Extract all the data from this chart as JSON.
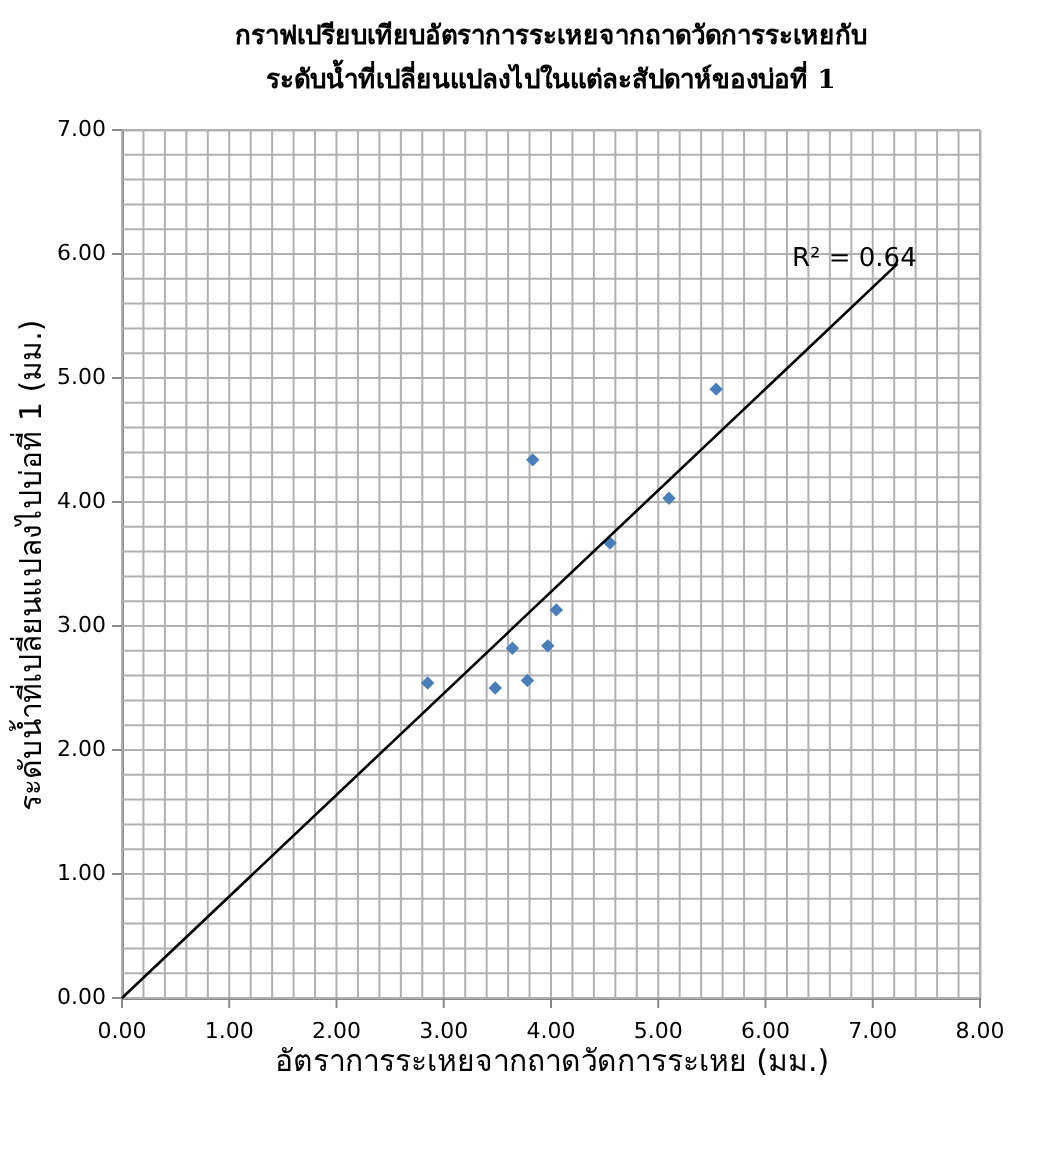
{
  "chart_data": {
    "type": "scatter",
    "title": [
      "กราฟเปรียบเทียบอัตราการระเหยจากถาดวัดการระเหยกับ",
      "ระดับน้ำที่เปลี่ยนแปลงไปในแต่ละสัปดาห์ของบ่อที่ 1"
    ],
    "xlabel": "อัตราการระเหยจากถาดวัดการระเหย (มม.)",
    "ylabel": "ระดับน้ำที่เปลี่ยนแปลงไปบ่อที่ 1 (มม.)",
    "annotations": [
      "R² = 0.64"
    ],
    "series": [
      {
        "color": "#4a7ebb",
        "marker": "diamond",
        "x": [
          5.54,
          3.83,
          5.1,
          4.55,
          4.05,
          3.64,
          3.97,
          3.48,
          3.78,
          2.85
        ],
        "values": [
          4.91,
          4.34,
          4.03,
          3.67,
          3.13,
          2.82,
          2.84,
          2.5,
          2.56,
          2.54
        ]
      },
      {
        "type": "line",
        "color": "#000000",
        "marker": "none",
        "x": [
          0,
          7.23
        ],
        "values": [
          0,
          5.92
        ]
      }
    ],
    "xlim": [
      0,
      8
    ],
    "ylim": [
      0,
      7
    ],
    "xticks": [
      {
        "value": 0,
        "label": "0.00"
      },
      {
        "value": 0.2,
        "label": null
      },
      {
        "value": 0.4,
        "label": null
      },
      {
        "value": 0.6,
        "label": null
      },
      {
        "value": 0.8,
        "label": null
      },
      {
        "value": 1,
        "label": "1.00"
      },
      {
        "value": 1.2,
        "label": null
      },
      {
        "value": 1.4,
        "label": null
      },
      {
        "value": 1.6,
        "label": null
      },
      {
        "value": 1.8,
        "label": null
      },
      {
        "value": 2,
        "label": "2.00"
      },
      {
        "value": 2.2,
        "label": null
      },
      {
        "value": 2.4,
        "label": null
      },
      {
        "value": 2.6,
        "label": null
      },
      {
        "value": 2.8,
        "label": null
      },
      {
        "value": 3,
        "label": "3.00"
      },
      {
        "value": 3.2,
        "label": null
      },
      {
        "value": 3.4,
        "label": null
      },
      {
        "value": 3.6,
        "label": null
      },
      {
        "value": 3.8,
        "label": null
      },
      {
        "value": 4,
        "label": "4.00"
      },
      {
        "value": 4.2,
        "label": null
      },
      {
        "value": 4.4,
        "label": null
      },
      {
        "value": 4.6,
        "label": null
      },
      {
        "value": 4.8,
        "label": null
      },
      {
        "value": 5,
        "label": "5.00"
      },
      {
        "value": 5.2,
        "label": null
      },
      {
        "value": 5.4,
        "label": null
      },
      {
        "value": 5.6,
        "label": null
      },
      {
        "value": 5.8,
        "label": null
      },
      {
        "value": 6,
        "label": "6.00"
      },
      {
        "value": 6.2,
        "label": null
      },
      {
        "value": 6.4,
        "label": null
      },
      {
        "value": 6.6,
        "label": null
      },
      {
        "value": 6.8,
        "label": null
      },
      {
        "value": 7,
        "label": "7.00"
      },
      {
        "value": 7.2,
        "label": null
      },
      {
        "value": 7.4,
        "label": null
      },
      {
        "value": 7.6,
        "label": null
      },
      {
        "value": 7.8,
        "label": null
      },
      {
        "value": 8,
        "label": "8.00"
      }
    ],
    "yticks": [
      {
        "value": 0,
        "label": "0.00"
      },
      {
        "value": 0.2,
        "label": null
      },
      {
        "value": 0.4,
        "label": null
      },
      {
        "value": 0.6,
        "label": null
      },
      {
        "value": 0.8,
        "label": null
      },
      {
        "value": 1,
        "label": "1.00"
      },
      {
        "value": 1.2,
        "label": null
      },
      {
        "value": 1.4,
        "label": null
      },
      {
        "value": 1.6,
        "label": null
      },
      {
        "value": 1.8,
        "label": null
      },
      {
        "value": 2,
        "label": "2.00"
      },
      {
        "value": 2.2,
        "label": null
      },
      {
        "value": 2.4,
        "label": null
      },
      {
        "value": 2.6,
        "label": null
      },
      {
        "value": 2.8,
        "label": null
      },
      {
        "value": 3,
        "label": "3.00"
      },
      {
        "value": 3.2,
        "label": null
      },
      {
        "value": 3.4,
        "label": null
      },
      {
        "value": 3.6,
        "label": null
      },
      {
        "value": 3.8,
        "label": null
      },
      {
        "value": 4,
        "label": "4.00"
      },
      {
        "value": 4.2,
        "label": null
      },
      {
        "value": 4.4,
        "label": null
      },
      {
        "value": 4.6,
        "label": null
      },
      {
        "value": 4.8,
        "label": null
      },
      {
        "value": 5,
        "label": "5.00"
      },
      {
        "value": 5.2,
        "label": null
      },
      {
        "value": 5.4,
        "label": null
      },
      {
        "value": 5.6,
        "label": null
      },
      {
        "value": 5.8,
        "label": null
      },
      {
        "value": 6,
        "label": "6.00"
      },
      {
        "value": 6.2,
        "label": null
      },
      {
        "value": 6.4,
        "label": null
      },
      {
        "value": 6.6,
        "label": null
      },
      {
        "value": 6.8,
        "label": null
      },
      {
        "value": 7,
        "label": "7.00"
      }
    ],
    "grid": true
  }
}
